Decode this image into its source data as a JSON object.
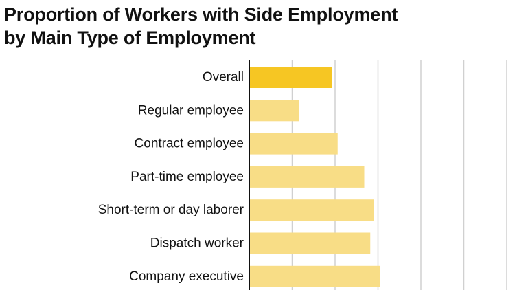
{
  "chart_data": {
    "type": "bar",
    "orientation": "horizontal",
    "title": "Proportion of Workers with Side Employment by Main Type of Employment",
    "title_lines": [
      "Proportion of Workers with Side Employment",
      "by Main Type of Employment"
    ],
    "xlabel": "",
    "ylabel": "",
    "categories": [
      "Overall",
      "Regular employee",
      "Contract employee",
      "Part-time employee",
      "Short-term or day laborer",
      "Dispatch worker",
      "Company executive"
    ],
    "values": [
      9.6,
      5.8,
      10.3,
      13.4,
      14.5,
      14.1,
      15.2
    ],
    "xlim": [
      0,
      30
    ],
    "grid_step": 5,
    "grid": true,
    "tick_labels_shown": false,
    "highlight_index": 0,
    "colors": {
      "highlight": "#F6C623",
      "bar": "#F8DD86",
      "grid": "#D0D0D0",
      "axis": "#111111"
    }
  }
}
